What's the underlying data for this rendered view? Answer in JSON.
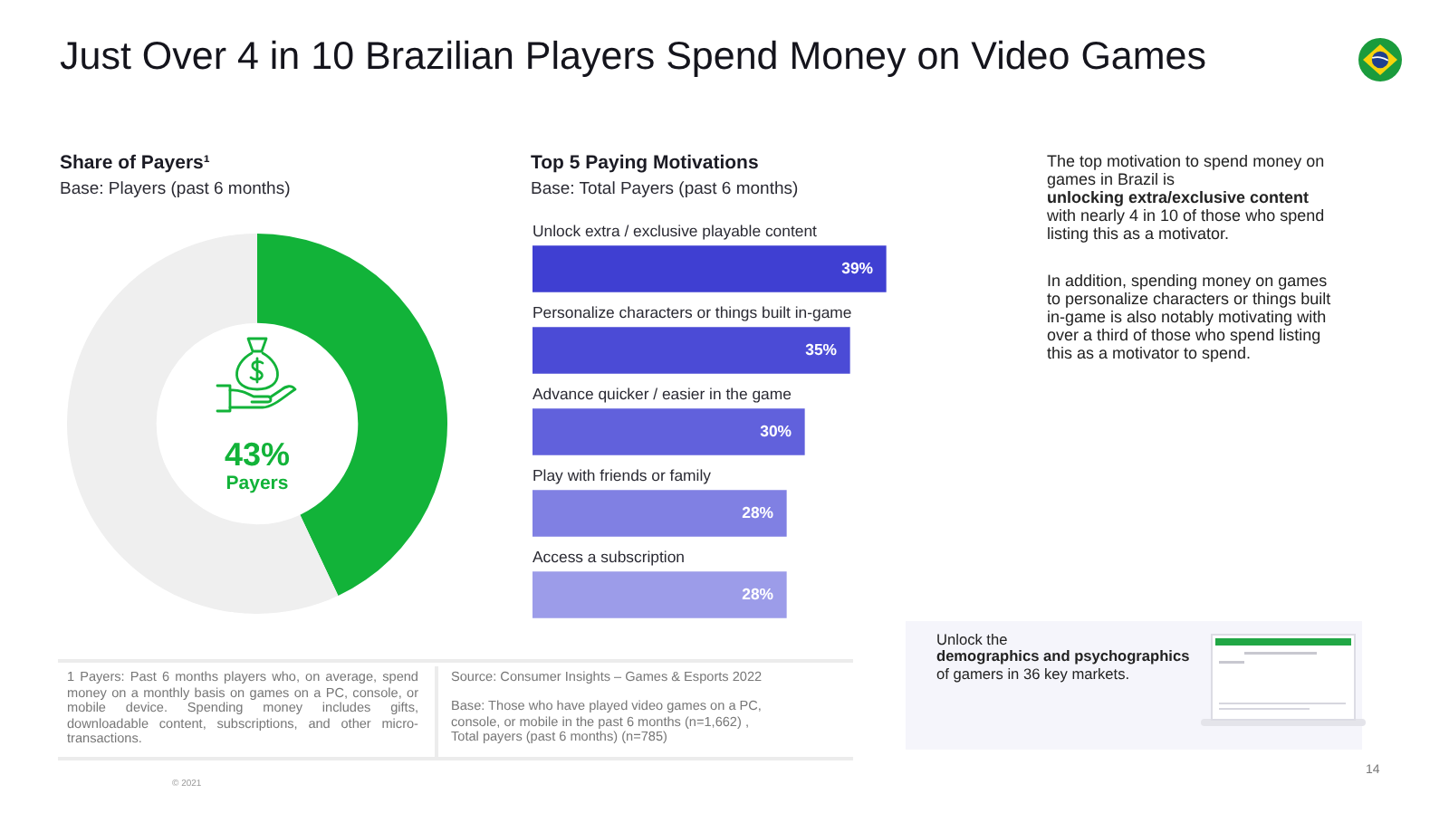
{
  "chart_data": [
    {
      "type": "other",
      "title": "Just Over 4 in 10 Brazilian Players Spend Money on Video Games",
      "annotations": [
        "The top motivation to spend money on games in Brazil is",
        "unlocking extra/exclusive content",
        "with nearly 4 in 10 of those who spend listing this as a motivator.",
        "In addition, spending money on games to personalize characters or things built in-game is also notably motivating with over a third of those who spend listing this as a motivator to spend.",
        "1 Payers: Past 6 months players who, on average, spend money on a monthly basis on games on a PC, console, or mobile device. Spending money includes gifts, downloadable content, subscriptions, and other micro-transactions.",
        "Source: Consumer Insights – Games & Esports 2022",
        "Base: Those who have played video games on a PC, console, or mobile in the past 6 months (n=1,662) , Total payers (past 6 months) (n=785)",
        "Unlock the",
        "demographics and psychographics",
        "of gamers in 36 key markets.",
        "© 2021",
        "14"
      ]
    },
    {
      "type": "donut",
      "title": "Share of Payers¹",
      "subtitle": "Base: Players (past 6 months)",
      "categories": [
        "Payers",
        null
      ],
      "values": [
        43,
        57
      ],
      "value_labels": [
        "43%",
        null
      ],
      "colors": [
        "#12b339",
        "#efefef"
      ]
    },
    {
      "type": "bar",
      "orientation": "horizontal",
      "title": "Top 5 Paying Motivations",
      "subtitle": "Base: Total Payers (past 6 months)",
      "categories": [
        "Unlock extra / exclusive playable content",
        "Personalize characters or things built in-game",
        "Advance quicker / easier in the game",
        "Play with friends or family",
        "Access a subscription"
      ],
      "values": [
        39,
        35,
        30,
        28,
        28
      ],
      "value_labels": [
        "39%",
        "35%",
        "30%",
        "28%",
        "28%"
      ],
      "colors": [
        "#3f3fd2",
        "#4b4bd6",
        "#6161dc",
        "#8080e3",
        "#9c9ce9"
      ],
      "tick_labels": "y"
    }
  ]
}
